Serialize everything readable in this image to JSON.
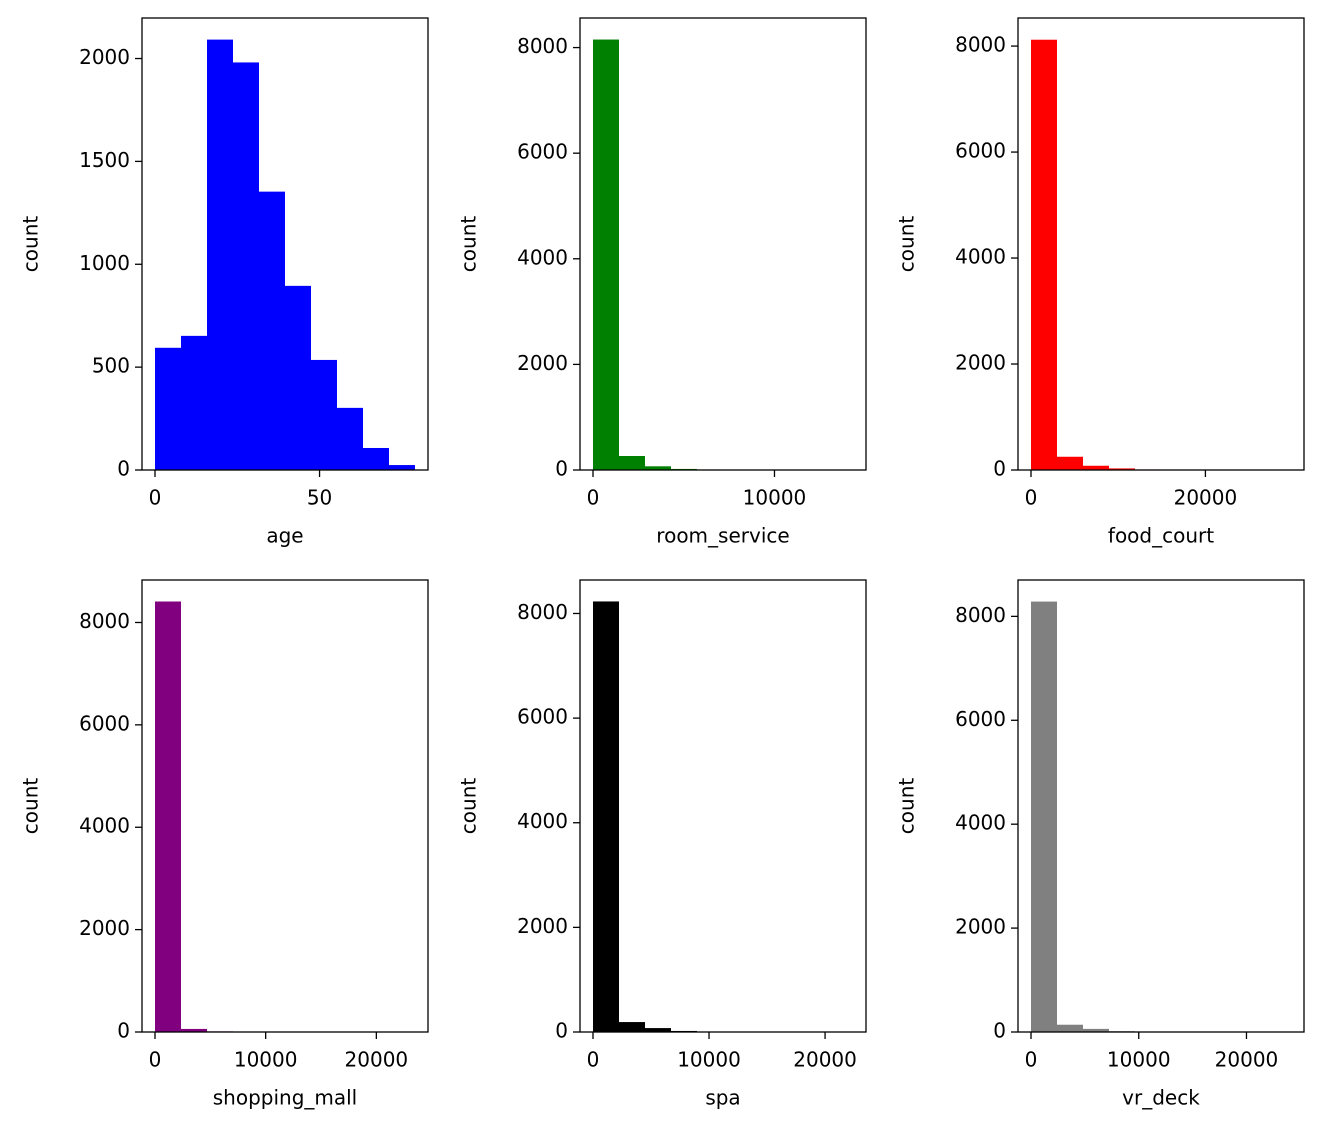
{
  "chart_data": [
    {
      "type": "histogram",
      "xlabel": "age",
      "ylabel": "count",
      "color": "#0000ff",
      "bins": [
        0,
        7.9,
        15.8,
        23.7,
        31.6,
        39.5,
        47.4,
        55.3,
        63.2,
        71.1,
        79
      ],
      "counts": [
        594,
        652,
        2092,
        1981,
        1353,
        895,
        535,
        302,
        107,
        24
      ],
      "xlim": [
        -3.95,
        82.95
      ],
      "ylim": [
        0,
        2197
      ],
      "xticks": [
        0,
        50
      ],
      "yticks": [
        0,
        500,
        1000,
        1500,
        2000
      ]
    },
    {
      "type": "histogram",
      "xlabel": "room_service",
      "ylabel": "count",
      "color": "#008000",
      "bins": [
        0,
        1432.7,
        2865.4,
        4298.1,
        5730.8,
        7163.5,
        8596.2,
        10028.9,
        11461.6,
        12894.3,
        14327
      ],
      "counts": [
        8152,
        265,
        70,
        20,
        10,
        5,
        3,
        2,
        1,
        1
      ],
      "xlim": [
        -716,
        15043
      ],
      "ylim": [
        0,
        8560
      ],
      "xticks": [
        0,
        10000
      ],
      "yticks": [
        0,
        2000,
        4000,
        6000,
        8000
      ]
    },
    {
      "type": "histogram",
      "xlabel": "food_court",
      "ylabel": "count",
      "color": "#ff0000",
      "bins": [
        0,
        2981.3,
        5962.6,
        8943.9,
        11925.2,
        14906.5,
        17887.8,
        20869.1,
        23850.4,
        26831.7,
        29813
      ],
      "counts": [
        8120,
        250,
        80,
        30,
        10,
        5,
        3,
        2,
        1,
        1
      ],
      "xlim": [
        -1490,
        31304
      ],
      "ylim": [
        0,
        8530
      ],
      "xticks": [
        0,
        20000
      ],
      "yticks": [
        0,
        2000,
        4000,
        6000,
        8000
      ]
    },
    {
      "type": "histogram",
      "xlabel": "shopping_mall",
      "ylabel": "count",
      "color": "#800080",
      "bins": [
        0,
        2349.2,
        4698.4,
        7047.6,
        9396.8,
        11746,
        14095.2,
        16444.4,
        18793.6,
        21142.8,
        23492
      ],
      "counts": [
        8410,
        60,
        12,
        5,
        3,
        1,
        1,
        1,
        0,
        1
      ],
      "xlim": [
        -1175,
        24667
      ],
      "ylim": [
        0,
        8830
      ],
      "xticks": [
        0,
        10000,
        20000
      ],
      "yticks": [
        0,
        2000,
        4000,
        6000,
        8000
      ]
    },
    {
      "type": "histogram",
      "xlabel": "spa",
      "ylabel": "count",
      "color": "#000000",
      "bins": [
        0,
        2240.8,
        4481.6,
        6722.4,
        8963.2,
        11204,
        13444.8,
        15685.6,
        17926.4,
        20167.2,
        22408
      ],
      "counts": [
        8230,
        190,
        75,
        20,
        8,
        5,
        2,
        1,
        1,
        1
      ],
      "xlim": [
        -1120,
        23528
      ],
      "ylim": [
        0,
        8640
      ],
      "xticks": [
        0,
        10000,
        20000
      ],
      "yticks": [
        0,
        2000,
        4000,
        6000,
        8000
      ]
    },
    {
      "type": "histogram",
      "xlabel": "vr_deck",
      "ylabel": "count",
      "color": "#808080",
      "bins": [
        0,
        2413.3,
        4826.6,
        7239.9,
        9653.2,
        12066.5,
        14479.8,
        16893.1,
        19306.4,
        21719.7,
        24133
      ],
      "counts": [
        8285,
        140,
        60,
        15,
        8,
        4,
        2,
        1,
        1,
        1
      ],
      "xlim": [
        -1207,
        25340
      ],
      "ylim": [
        0,
        8700
      ],
      "xticks": [
        0,
        10000,
        20000
      ],
      "yticks": [
        0,
        2000,
        4000,
        6000,
        8000
      ]
    }
  ]
}
